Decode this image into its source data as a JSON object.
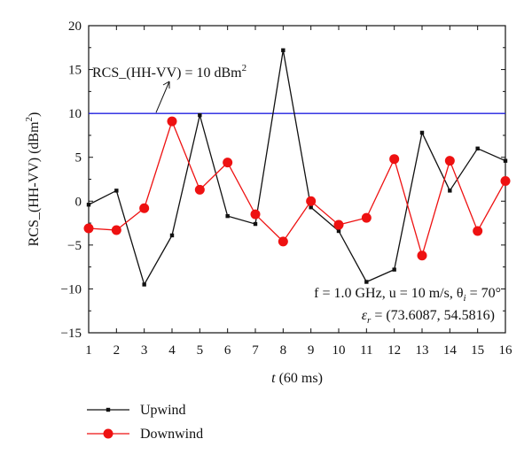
{
  "chart_data": {
    "type": "line",
    "x": [
      1,
      2,
      3,
      4,
      5,
      6,
      7,
      8,
      9,
      10,
      11,
      12,
      13,
      14,
      15,
      16
    ],
    "xlabel": {
      "var": "t",
      "unit": "(60 ms)"
    },
    "ylabel": {
      "text": "RCS_(HH-VV) (dBm",
      "sup": "2",
      "end": ")"
    },
    "xlim": [
      1,
      16
    ],
    "ylim": [
      -15,
      20
    ],
    "x_ticks": [
      "1",
      "2",
      "3",
      "4",
      "5",
      "6",
      "7",
      "8",
      "9",
      "10",
      "11",
      "12",
      "13",
      "14",
      "15",
      "16"
    ],
    "y_ticks": [
      "−15",
      "−10",
      "−5",
      "0",
      "5",
      "10",
      "15",
      "20"
    ],
    "y_tick_values": [
      -15,
      -10,
      -5,
      0,
      5,
      10,
      15,
      20
    ],
    "grid": false,
    "legend_position": "bottom-left",
    "series": [
      {
        "name": "Upwind",
        "color": "#111111",
        "marker": "square",
        "values": [
          -0.4,
          1.2,
          -9.5,
          -3.9,
          9.8,
          -1.7,
          -2.6,
          17.2,
          -0.7,
          -3.4,
          -9.2,
          -7.8,
          7.8,
          1.2,
          6.0,
          4.6
        ]
      },
      {
        "name": "Downwind",
        "color": "#ee1111",
        "marker": "circle",
        "values": [
          -3.1,
          -3.3,
          -0.8,
          9.1,
          1.3,
          4.4,
          -1.5,
          -4.6,
          0.0,
          -2.7,
          -1.9,
          4.8,
          -6.2,
          4.6,
          -3.4,
          2.3
        ]
      }
    ],
    "reference_line": {
      "value": 10,
      "color": "#2020e0",
      "label_text": "RCS_(HH-VV) = 10 dBm",
      "label_sup": "2"
    },
    "annotation": {
      "line1": "f = 1.0 GHz, u = 10 m/s, θ",
      "line1_sub": "i",
      "line1_end": " = 70°",
      "line2_eps": "ε",
      "line2_sub": "r",
      "line2_rest": " = (73.6087, 54.5816)"
    }
  }
}
